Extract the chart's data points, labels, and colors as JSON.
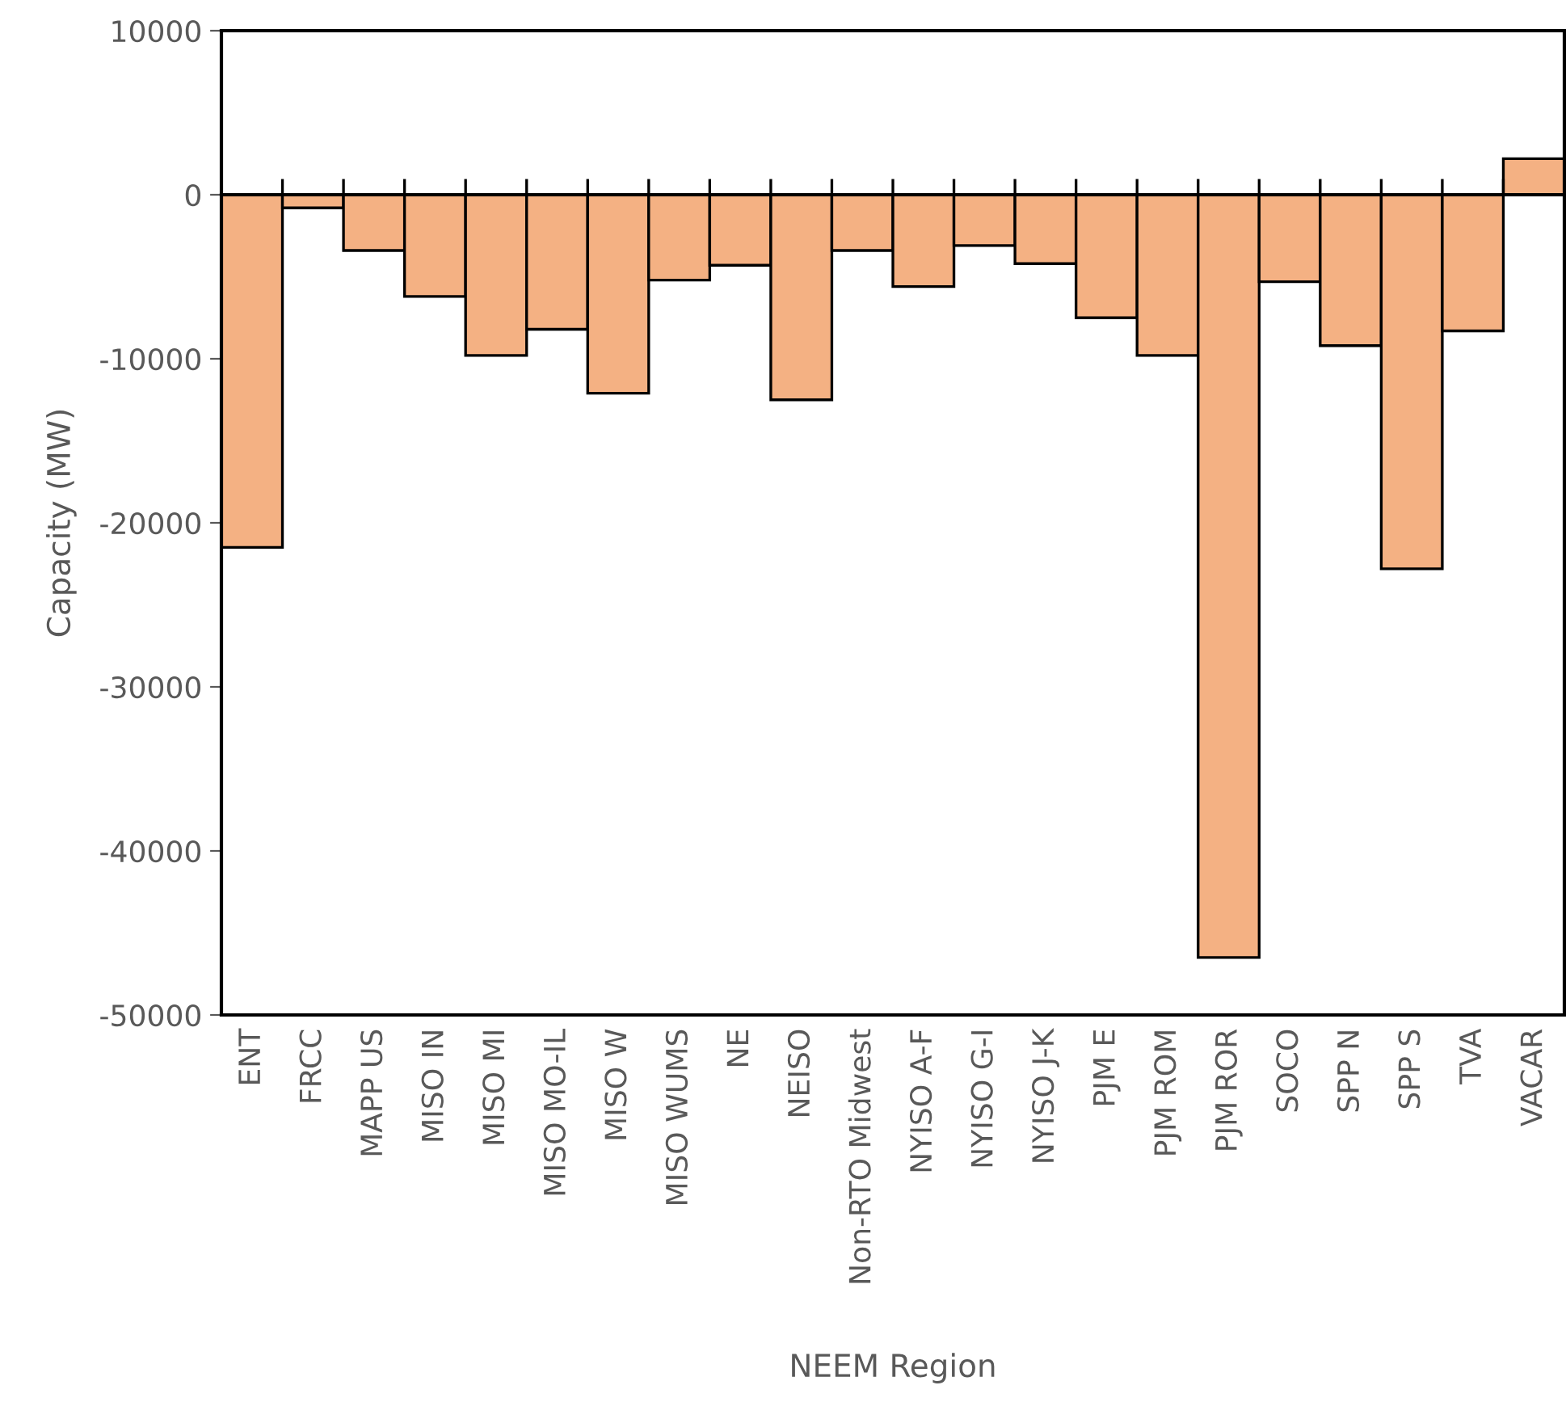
{
  "chart_data": {
    "type": "bar",
    "xlabel": "NEEM Region",
    "ylabel": "Capacity (MW)",
    "categories": [
      "ENT",
      "FRCC",
      "MAPP US",
      "MISO IN",
      "MISO MI",
      "MISO MO-IL",
      "MISO W",
      "MISO WUMS",
      "NE",
      "NEISO",
      "Non-RTO Midwest",
      "NYISO A-F",
      "NYISO G-I",
      "NYISO J-K",
      "PJM E",
      "PJM ROM",
      "PJM ROR",
      "SOCO",
      "SPP N",
      "SPP S",
      "TVA",
      "VACAR"
    ],
    "values": [
      -21500,
      -800,
      -3400,
      -6200,
      -9800,
      -8200,
      -12100,
      -5200,
      -4300,
      -12500,
      -3400,
      -5600,
      -3100,
      -4200,
      -7500,
      -9800,
      -46500,
      -5300,
      -9200,
      -22800,
      -8300,
      2200
    ],
    "color": "#f4b183",
    "ylim": [
      -50000,
      10000
    ],
    "yticks": [
      -50000,
      -40000,
      -30000,
      -20000,
      -10000,
      0,
      10000
    ],
    "legend": false
  }
}
